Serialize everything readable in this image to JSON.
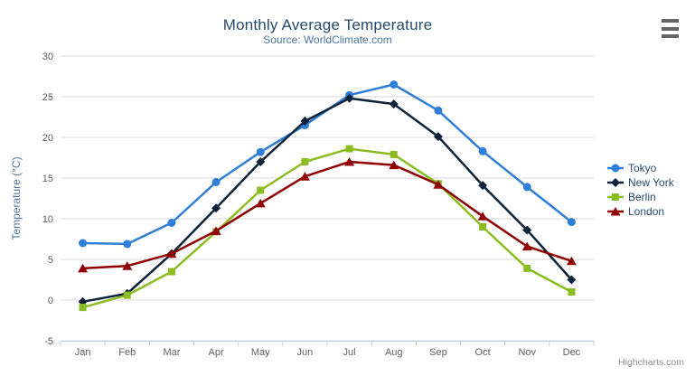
{
  "chart": {
    "title": "Monthly Average Temperature",
    "subtitle": "Source: WorldClimate.com",
    "credit": "Highcharts.com",
    "context_button_icon": "hamburger-icon"
  },
  "colors": {
    "title": "#274b6d",
    "subtitle": "#4d759e",
    "axis_label": "#606060",
    "axis_title": "#4d759e",
    "axis_line": "#c0d0e0",
    "gridline": "#d8d8d8",
    "legend_text": "#274b6d",
    "credit_text": "#909090",
    "hamburger": "#666666"
  },
  "chart_data": {
    "type": "line",
    "title": "Monthly Average Temperature",
    "subtitle": "Source: WorldClimate.com",
    "categories": [
      "Jan",
      "Feb",
      "Mar",
      "Apr",
      "May",
      "Jun",
      "Jul",
      "Aug",
      "Sep",
      "Oct",
      "Nov",
      "Dec"
    ],
    "xlabel": "",
    "ylabel": "Temperature (°C)",
    "ylim": [
      -5,
      30
    ],
    "ytick_interval": 5,
    "yticks": [
      -5,
      0,
      5,
      10,
      15,
      20,
      25,
      30
    ],
    "grid": "horizontal",
    "legend_position": "right",
    "series": [
      {
        "name": "Tokyo",
        "color": "#2f7ed8",
        "marker": "circle",
        "values": [
          7.0,
          6.9,
          9.5,
          14.5,
          18.2,
          21.5,
          25.2,
          26.5,
          23.3,
          18.3,
          13.9,
          9.6
        ]
      },
      {
        "name": "New York",
        "color": "#0d233a",
        "marker": "diamond",
        "values": [
          -0.2,
          0.8,
          5.7,
          11.3,
          17.0,
          22.0,
          24.8,
          24.1,
          20.1,
          14.1,
          8.6,
          2.5
        ]
      },
      {
        "name": "Berlin",
        "color": "#8bbc21",
        "marker": "square",
        "values": [
          -0.9,
          0.6,
          3.5,
          8.4,
          13.5,
          17.0,
          18.6,
          17.9,
          14.3,
          9.0,
          3.9,
          1.0
        ]
      },
      {
        "name": "London",
        "color": "#910000",
        "marker": "triangle",
        "values": [
          3.9,
          4.2,
          5.7,
          8.5,
          11.9,
          15.2,
          17.0,
          16.6,
          14.2,
          10.3,
          6.6,
          4.8
        ]
      }
    ]
  }
}
